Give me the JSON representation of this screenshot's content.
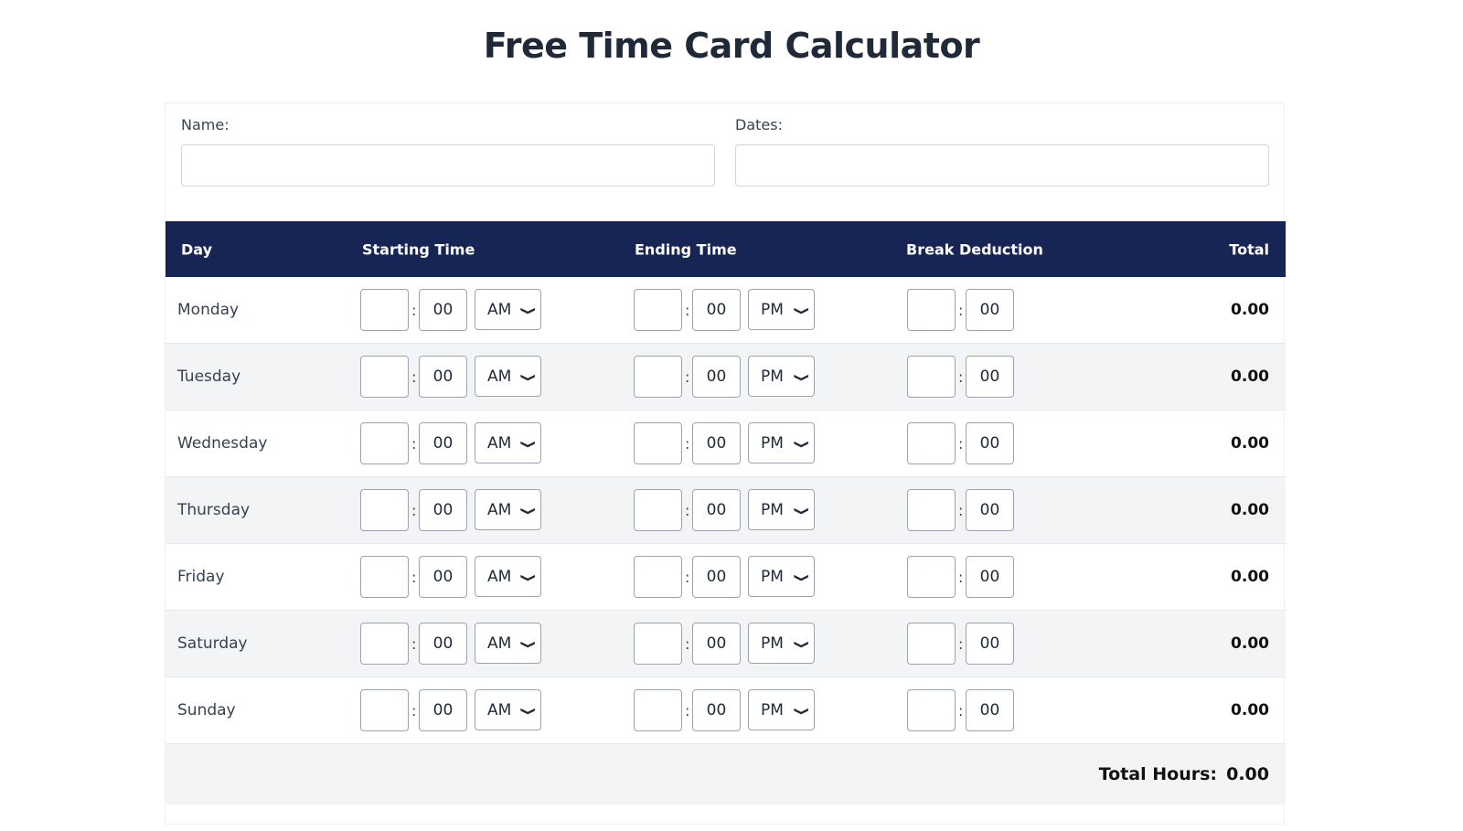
{
  "title": "Free Time Card Calculator",
  "name_field": {
    "label": "Name:",
    "value": ""
  },
  "dates_field": {
    "label": "Dates:",
    "value": ""
  },
  "table": {
    "headers": [
      "Day",
      "Starting Time",
      "Ending Time",
      "Break Deduction",
      "Total"
    ],
    "rows": [
      {
        "day": "Monday",
        "start_hour": "",
        "start_min": "00",
        "start_ampm": "AM",
        "end_hour": "",
        "end_min": "00",
        "end_ampm": "PM",
        "break_hour": "",
        "break_min": "00",
        "total": "0.00"
      },
      {
        "day": "Tuesday",
        "start_hour": "",
        "start_min": "00",
        "start_ampm": "AM",
        "end_hour": "",
        "end_min": "00",
        "end_ampm": "PM",
        "break_hour": "",
        "break_min": "00",
        "total": "0.00"
      },
      {
        "day": "Wednesday",
        "start_hour": "",
        "start_min": "00",
        "start_ampm": "AM",
        "end_hour": "",
        "end_min": "00",
        "end_ampm": "PM",
        "break_hour": "",
        "break_min": "00",
        "total": "0.00"
      },
      {
        "day": "Thursday",
        "start_hour": "",
        "start_min": "00",
        "start_ampm": "AM",
        "end_hour": "",
        "end_min": "00",
        "end_ampm": "PM",
        "break_hour": "",
        "break_min": "00",
        "total": "0.00"
      },
      {
        "day": "Friday",
        "start_hour": "",
        "start_min": "00",
        "start_ampm": "AM",
        "end_hour": "",
        "end_min": "00",
        "end_ampm": "PM",
        "break_hour": "",
        "break_min": "00",
        "total": "0.00"
      },
      {
        "day": "Saturday",
        "start_hour": "",
        "start_min": "00",
        "start_ampm": "AM",
        "end_hour": "",
        "end_min": "00",
        "end_ampm": "PM",
        "break_hour": "",
        "break_min": "00",
        "total": "0.00"
      },
      {
        "day": "Sunday",
        "start_hour": "",
        "start_min": "00",
        "start_ampm": "AM",
        "end_hour": "",
        "end_min": "00",
        "end_ampm": "PM",
        "break_hour": "",
        "break_min": "00",
        "total": "0.00"
      }
    ],
    "separator": ":"
  },
  "footer": {
    "label": "Total Hours:",
    "value": "0.00"
  },
  "colors": {
    "header_bg": "#172554",
    "alt_row": "#f3f4f6"
  }
}
